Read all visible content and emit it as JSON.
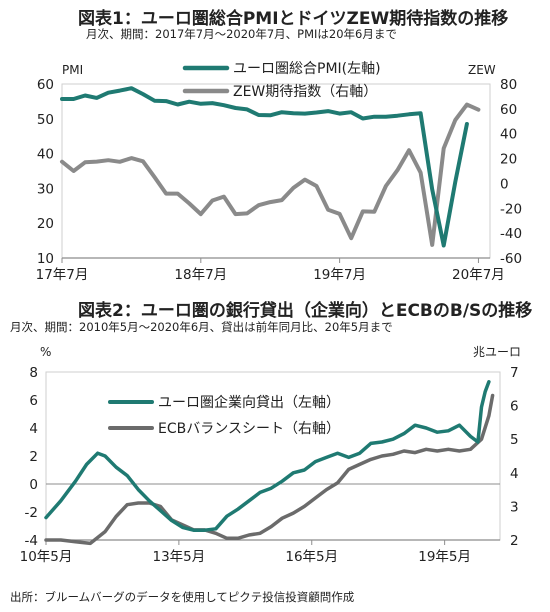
{
  "chart_data": [
    {
      "type": "line",
      "title": "図表1：ユーロ圏総合PMIとドイツZEW期待指数の推移",
      "subtitle": "月次、期間：2017年7月～2020年7月、PMIは20年6月まで",
      "ylabel_left": "PMI",
      "ylabel_right": "ZEW",
      "ylim_left": [
        10,
        60
      ],
      "ylim_right": [
        -60,
        80
      ],
      "yticks_left": [
        "60",
        "50",
        "40",
        "30",
        "20",
        "10"
      ],
      "yticks_right": [
        "80",
        "60",
        "40",
        "20",
        "0",
        "-20",
        "-40",
        "-60"
      ],
      "xticks": [
        "17年7月",
        "18年7月",
        "19年7月",
        "20年7月"
      ],
      "legend": "top-center",
      "grid": false,
      "series": [
        {
          "name": "ユーロ圏総合PMI(左軸)",
          "axis": "left",
          "color": "#1f7a72",
          "points": [
            [
              "2017-07",
              55.7
            ],
            [
              "2017-08",
              55.7
            ],
            [
              "2017-09",
              56.7
            ],
            [
              "2017-10",
              56.0
            ],
            [
              "2017-11",
              57.5
            ],
            [
              "2017-12",
              58.1
            ],
            [
              "2018-01",
              58.8
            ],
            [
              "2018-02",
              57.1
            ],
            [
              "2018-03",
              55.2
            ],
            [
              "2018-04",
              55.1
            ],
            [
              "2018-05",
              54.1
            ],
            [
              "2018-06",
              54.9
            ],
            [
              "2018-07",
              54.3
            ],
            [
              "2018-08",
              54.5
            ],
            [
              "2018-09",
              53.9
            ],
            [
              "2018-10",
              53.1
            ],
            [
              "2018-11",
              52.7
            ],
            [
              "2018-12",
              51.1
            ],
            [
              "2019-01",
              51.0
            ],
            [
              "2019-02",
              51.9
            ],
            [
              "2019-03",
              51.6
            ],
            [
              "2019-04",
              51.5
            ],
            [
              "2019-05",
              51.8
            ],
            [
              "2019-06",
              52.2
            ],
            [
              "2019-07",
              51.5
            ],
            [
              "2019-08",
              51.9
            ],
            [
              "2019-09",
              50.1
            ],
            [
              "2019-10",
              50.6
            ],
            [
              "2019-11",
              50.6
            ],
            [
              "2019-12",
              50.9
            ],
            [
              "2020-01",
              51.3
            ],
            [
              "2020-02",
              51.6
            ],
            [
              "2020-03",
              29.7
            ],
            [
              "2020-04",
              13.6
            ],
            [
              "2020-05",
              31.9
            ],
            [
              "2020-06",
              48.5
            ]
          ]
        },
        {
          "name": "ZEW期待指数（右軸）",
          "axis": "right",
          "color": "#8a8a8a",
          "points": [
            [
              "2017-07",
              17.5
            ],
            [
              "2017-08",
              10.0
            ],
            [
              "2017-09",
              17.0
            ],
            [
              "2017-10",
              17.6
            ],
            [
              "2017-11",
              18.7
            ],
            [
              "2017-12",
              17.4
            ],
            [
              "2018-01",
              20.4
            ],
            [
              "2018-02",
              17.8
            ],
            [
              "2018-03",
              5.1
            ],
            [
              "2018-04",
              -8.2
            ],
            [
              "2018-05",
              -8.2
            ],
            [
              "2018-06",
              -16.1
            ],
            [
              "2018-07",
              -24.7
            ],
            [
              "2018-08",
              -13.7
            ],
            [
              "2018-09",
              -10.6
            ],
            [
              "2018-10",
              -24.7
            ],
            [
              "2018-11",
              -24.1
            ],
            [
              "2018-12",
              -17.5
            ],
            [
              "2019-01",
              -15.0
            ],
            [
              "2019-02",
              -13.4
            ],
            [
              "2019-03",
              -3.6
            ],
            [
              "2019-04",
              3.1
            ],
            [
              "2019-05",
              -2.1
            ],
            [
              "2019-06",
              -21.1
            ],
            [
              "2019-07",
              -24.5
            ],
            [
              "2019-08",
              -44.1
            ],
            [
              "2019-09",
              -22.5
            ],
            [
              "2019-10",
              -22.8
            ],
            [
              "2019-11",
              -2.1
            ],
            [
              "2019-12",
              10.7
            ],
            [
              "2020-01",
              26.7
            ],
            [
              "2020-02",
              8.7
            ],
            [
              "2020-03",
              -49.5
            ],
            [
              "2020-04",
              28.2
            ],
            [
              "2020-05",
              51.0
            ],
            [
              "2020-06",
              63.4
            ],
            [
              "2020-07",
              59.3
            ]
          ]
        }
      ]
    },
    {
      "type": "line",
      "title": "図表2：ユーロ圏の銀行貸出（企業向）とECBのB/Sの推移",
      "subtitle": "月次、期間：2010年5月～2020年6月、貸出は前年同月比、20年5月まで",
      "ylabel_left": "%",
      "ylabel_right": "兆ユーロ",
      "ylim_left": [
        -4,
        8
      ],
      "ylim_right": [
        2,
        7
      ],
      "yticks_left": [
        "8",
        "6",
        "4",
        "2",
        "0",
        "-2",
        "-4"
      ],
      "yticks_right": [
        "7",
        "6",
        "5",
        "4",
        "3",
        "2"
      ],
      "xticks": [
        "10年5月",
        "13年5月",
        "16年5月",
        "19年5月"
      ],
      "legend": "center-right",
      "grid": false,
      "series": [
        {
          "name": "ユーロ圏企業向貸出（左軸）",
          "axis": "left",
          "color": "#1f7a72",
          "points": [
            [
              "2010-05",
              -2.4
            ],
            [
              "2010-09",
              -1.2
            ],
            [
              "2011-01",
              0.2
            ],
            [
              "2011-04",
              1.4
            ],
            [
              "2011-07",
              2.2
            ],
            [
              "2011-09",
              2.0
            ],
            [
              "2011-12",
              1.2
            ],
            [
              "2012-03",
              0.6
            ],
            [
              "2012-06",
              -0.4
            ],
            [
              "2012-09",
              -1.2
            ],
            [
              "2012-12",
              -1.9
            ],
            [
              "2013-03",
              -2.6
            ],
            [
              "2013-06",
              -3.1
            ],
            [
              "2013-09",
              -3.3
            ],
            [
              "2013-12",
              -3.3
            ],
            [
              "2014-03",
              -3.2
            ],
            [
              "2014-06",
              -2.3
            ],
            [
              "2014-09",
              -1.8
            ],
            [
              "2014-12",
              -1.2
            ],
            [
              "2015-03",
              -0.6
            ],
            [
              "2015-06",
              -0.3
            ],
            [
              "2015-09",
              0.2
            ],
            [
              "2015-12",
              0.8
            ],
            [
              "2016-03",
              1.0
            ],
            [
              "2016-06",
              1.6
            ],
            [
              "2016-09",
              1.9
            ],
            [
              "2016-12",
              2.2
            ],
            [
              "2017-03",
              1.9
            ],
            [
              "2017-06",
              2.2
            ],
            [
              "2017-09",
              2.9
            ],
            [
              "2017-12",
              3.0
            ],
            [
              "2018-03",
              3.2
            ],
            [
              "2018-06",
              3.6
            ],
            [
              "2018-09",
              4.2
            ],
            [
              "2018-12",
              4.0
            ],
            [
              "2019-03",
              3.7
            ],
            [
              "2019-06",
              3.8
            ],
            [
              "2019-09",
              4.2
            ],
            [
              "2019-12",
              3.4
            ],
            [
              "2020-02",
              3.0
            ],
            [
              "2020-03",
              5.5
            ],
            [
              "2020-04",
              6.6
            ],
            [
              "2020-05",
              7.3
            ]
          ]
        },
        {
          "name": "ECBバランスシート（右軸）",
          "axis": "right",
          "color": "#6b6b6b",
          "points": [
            [
              "2010-05",
              2.0
            ],
            [
              "2010-09",
              2.0
            ],
            [
              "2011-01",
              1.95
            ],
            [
              "2011-05",
              1.9
            ],
            [
              "2011-09",
              2.25
            ],
            [
              "2011-12",
              2.7
            ],
            [
              "2012-03",
              3.05
            ],
            [
              "2012-06",
              3.1
            ],
            [
              "2012-09",
              3.1
            ],
            [
              "2012-12",
              3.0
            ],
            [
              "2013-03",
              2.6
            ],
            [
              "2013-06",
              2.45
            ],
            [
              "2013-09",
              2.3
            ],
            [
              "2013-12",
              2.3
            ],
            [
              "2014-03",
              2.2
            ],
            [
              "2014-06",
              2.05
            ],
            [
              "2014-09",
              2.05
            ],
            [
              "2014-12",
              2.15
            ],
            [
              "2015-03",
              2.2
            ],
            [
              "2015-06",
              2.4
            ],
            [
              "2015-09",
              2.65
            ],
            [
              "2015-12",
              2.8
            ],
            [
              "2016-03",
              3.0
            ],
            [
              "2016-06",
              3.25
            ],
            [
              "2016-09",
              3.5
            ],
            [
              "2016-12",
              3.7
            ],
            [
              "2017-03",
              4.1
            ],
            [
              "2017-06",
              4.25
            ],
            [
              "2017-09",
              4.4
            ],
            [
              "2017-12",
              4.5
            ],
            [
              "2018-03",
              4.55
            ],
            [
              "2018-06",
              4.65
            ],
            [
              "2018-09",
              4.6
            ],
            [
              "2018-12",
              4.7
            ],
            [
              "2019-03",
              4.65
            ],
            [
              "2019-06",
              4.7
            ],
            [
              "2019-09",
              4.65
            ],
            [
              "2019-12",
              4.7
            ],
            [
              "2020-03",
              5.0
            ],
            [
              "2020-05",
              5.7
            ],
            [
              "2020-06",
              6.3
            ]
          ]
        }
      ]
    }
  ],
  "source_note": "出所：ブルームバーグのデータを使用してピクテ投信投資顧問作成"
}
